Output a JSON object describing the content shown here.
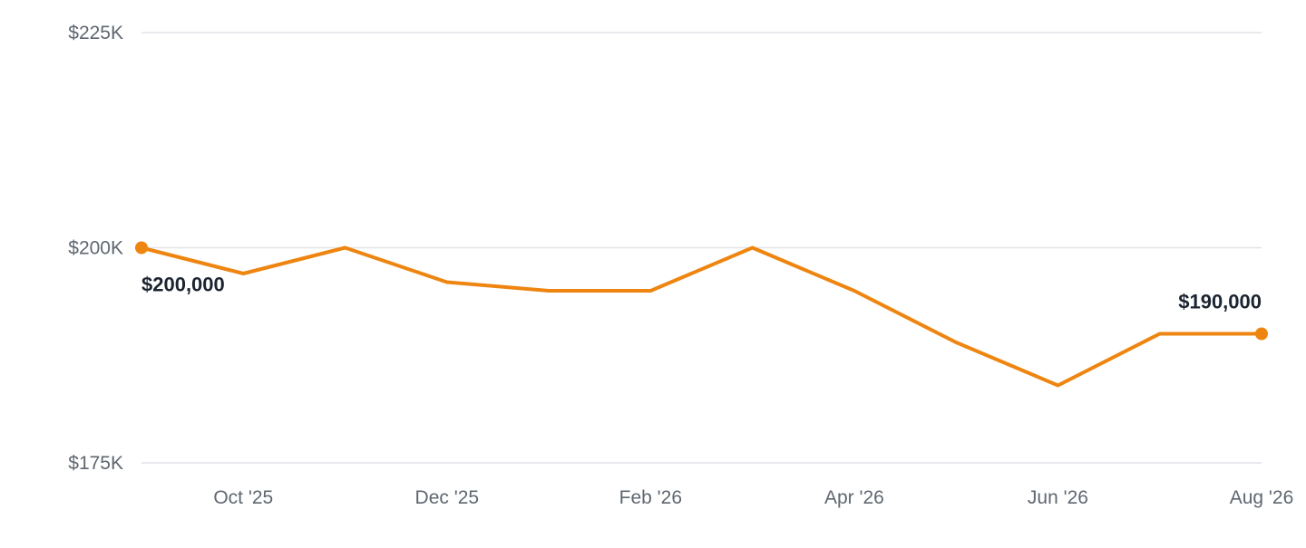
{
  "colors": {
    "line": "#EE8510",
    "grid": "#E1E3E8",
    "tick_text": "#5F6770",
    "label_text": "#1B2430",
    "background": "#FFFFFF"
  },
  "chart_data": {
    "type": "line",
    "title": "",
    "xlabel": "",
    "ylabel": "",
    "ylim": [
      175000,
      225000
    ],
    "y_ticks": [
      {
        "value": 175000,
        "label": "$175K"
      },
      {
        "value": 200000,
        "label": "$200K"
      },
      {
        "value": 225000,
        "label": "$225K"
      }
    ],
    "grid": true,
    "legend": "none",
    "x_range": [
      "2025-09",
      "2026-08"
    ],
    "x_ticks": [
      {
        "date": "2025-10",
        "label": "Oct '25"
      },
      {
        "date": "2025-12",
        "label": "Dec '25"
      },
      {
        "date": "2026-02",
        "label": "Feb '26"
      },
      {
        "date": "2026-04",
        "label": "Apr '26"
      },
      {
        "date": "2026-06",
        "label": "Jun '26"
      },
      {
        "date": "2026-08",
        "label": "Aug '26"
      }
    ],
    "series": [
      {
        "x": [
          "2025-09",
          "2025-10",
          "2025-11",
          "2025-12",
          "2026-01",
          "2026-02",
          "2026-03",
          "2026-04",
          "2026-05",
          "2026-06",
          "2026-07",
          "2026-08"
        ],
        "values": [
          200000,
          197000,
          200000,
          196000,
          195000,
          195000,
          200000,
          195000,
          189000,
          184000,
          190000,
          190000
        ]
      }
    ],
    "annotations": [
      {
        "date": "2025-09",
        "value": 200000,
        "text": "$200,000",
        "position": "below-right"
      },
      {
        "date": "2026-08",
        "value": 190000,
        "text": "$190,000",
        "position": "above-left"
      }
    ]
  }
}
